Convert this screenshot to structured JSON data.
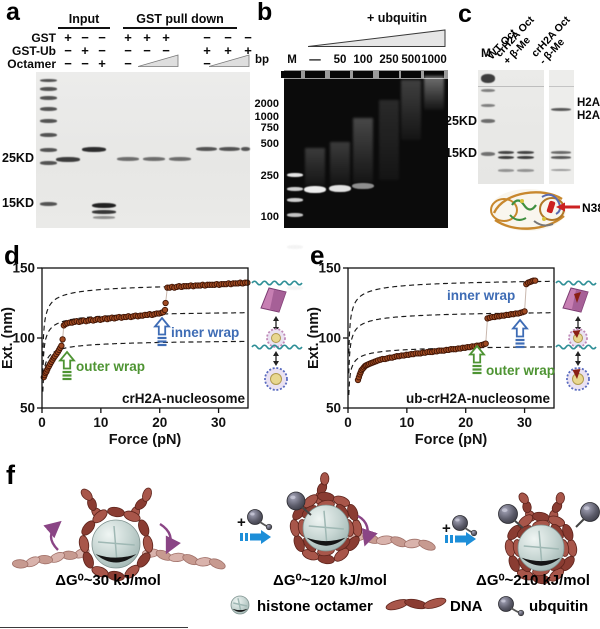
{
  "panels": {
    "a": {
      "label": "a",
      "group1": "Input",
      "group2": "GST pull down",
      "row1_name": "GST",
      "row1": [
        "+",
        "−",
        "−",
        "+",
        "+",
        "+",
        "−",
        "−",
        "−"
      ],
      "row2_name": "GST-Ub",
      "row2": [
        "−",
        "+",
        "−",
        "−",
        "−",
        "−",
        "+",
        "+",
        "+"
      ],
      "row3_name": "Octamer",
      "row3": [
        "−",
        "−",
        "+",
        "−",
        "−"
      ],
      "mw1": "25KD",
      "mw2": "15KD"
    },
    "b": {
      "label": "b",
      "title": "+ ubquitin",
      "bp": "bp",
      "m": "M",
      "lanes": [
        "—",
        "50",
        "100",
        "250",
        "500",
        "1000"
      ],
      "ladder": [
        "2000",
        "1000",
        "750",
        "500",
        "250",
        "100"
      ]
    },
    "c": {
      "label": "c",
      "m": "M",
      "lane1": "WT Oct",
      "lane2a": "crH2A Oct",
      "lane2b": "+ β-Me",
      "lane3a": "crH2A Oct",
      "lane3b": "- β-Me",
      "mw1": "25KD",
      "mw2": "15KD",
      "band1": "H2A-",
      "band2": "H2A",
      "structure_label": "N38C"
    },
    "d": {
      "label": "d"
    },
    "e": {
      "label": "e"
    },
    "f": {
      "label": "f",
      "dg": [
        "ΔG⁰~30 kJ/mol",
        "ΔG⁰~120 kJ/mol",
        "ΔG⁰~210 kJ/mol"
      ],
      "legend": [
        "histone octamer",
        "DNA",
        "ubquitin"
      ]
    }
  },
  "chart_data": [
    {
      "type": "scatter",
      "panel": "d",
      "title": "crH2A-nucleosome",
      "xlabel": "Force (pN)",
      "ylabel": "Ext. (nm)",
      "xlim": [
        0,
        35
      ],
      "ylim": [
        50,
        150
      ],
      "xticks": [
        0,
        10,
        20,
        30
      ],
      "yticks": [
        50,
        100,
        150
      ],
      "point_color": "#a04a22",
      "model_L": [
        100,
        121,
        141
      ],
      "annotations": [
        {
          "label": "outer wrap",
          "color": "#4e9433"
        },
        {
          "label": "inner wrap",
          "color": "#3e6cb5"
        }
      ],
      "transitions": [
        {
          "name": "outer wrap",
          "force_pN": 3.6,
          "ext_jump_nm": [
            95,
            109
          ]
        },
        {
          "name": "inner wrap",
          "force_pN": 21.1,
          "ext_jump_nm": [
            120,
            136
          ]
        }
      ],
      "points": [
        [
          0.3,
          72
        ],
        [
          0.45,
          73.5
        ],
        [
          0.6,
          75
        ],
        [
          0.75,
          76
        ],
        [
          0.9,
          77.5
        ],
        [
          1.05,
          79
        ],
        [
          1.2,
          80
        ],
        [
          1.4,
          81.5
        ],
        [
          1.6,
          83
        ],
        [
          1.8,
          84.5
        ],
        [
          2.0,
          86
        ],
        [
          2.2,
          87
        ],
        [
          2.45,
          88.5
        ],
        [
          2.7,
          90
        ],
        [
          2.9,
          91.5
        ],
        [
          3.1,
          93
        ],
        [
          3.3,
          94.5
        ],
        [
          3.5,
          99
        ],
        [
          3.7,
          109
        ],
        [
          4.0,
          110
        ],
        [
          4.3,
          110.5
        ],
        [
          4.7,
          111
        ],
        [
          5.1,
          111
        ],
        [
          5.5,
          111.5
        ],
        [
          5.9,
          112
        ],
        [
          6.3,
          111.5
        ],
        [
          6.7,
          112
        ],
        [
          7.1,
          112.5
        ],
        [
          7.5,
          112
        ],
        [
          7.9,
          112.5
        ],
        [
          8.3,
          113
        ],
        [
          8.7,
          112.5
        ],
        [
          9.1,
          113
        ],
        [
          9.5,
          113.5
        ],
        [
          9.9,
          113
        ],
        [
          10.3,
          113.5
        ],
        [
          10.7,
          114
        ],
        [
          11.1,
          113.5
        ],
        [
          11.5,
          114
        ],
        [
          11.9,
          114.5
        ],
        [
          12.3,
          114
        ],
        [
          12.7,
          114.5
        ],
        [
          13.1,
          115
        ],
        [
          13.5,
          114.5
        ],
        [
          13.9,
          115
        ],
        [
          14.3,
          115
        ],
        [
          14.7,
          115.5
        ],
        [
          15.1,
          115
        ],
        [
          15.5,
          115.5
        ],
        [
          15.9,
          116
        ],
        [
          16.3,
          115.5
        ],
        [
          16.7,
          116
        ],
        [
          17.1,
          116
        ],
        [
          17.5,
          116.5
        ],
        [
          17.9,
          116.5
        ],
        [
          18.3,
          117
        ],
        [
          18.7,
          116.5
        ],
        [
          19.1,
          117
        ],
        [
          19.5,
          117.5
        ],
        [
          19.9,
          117.5
        ],
        [
          20.3,
          118
        ],
        [
          20.6,
          118.5
        ],
        [
          20.9,
          120
        ],
        [
          21.0,
          125
        ],
        [
          21.3,
          136
        ],
        [
          21.7,
          136
        ],
        [
          22.1,
          136.5
        ],
        [
          22.5,
          136
        ],
        [
          22.9,
          136.5
        ],
        [
          23.3,
          137
        ],
        [
          23.7,
          136.5
        ],
        [
          24.1,
          137
        ],
        [
          24.5,
          137
        ],
        [
          24.9,
          137
        ],
        [
          25.3,
          137.5
        ],
        [
          25.7,
          137
        ],
        [
          26.1,
          137.5
        ],
        [
          26.5,
          137.5
        ],
        [
          26.9,
          137.5
        ],
        [
          27.3,
          138
        ],
        [
          27.7,
          137.5
        ],
        [
          28.1,
          138
        ],
        [
          28.5,
          138
        ],
        [
          28.9,
          138
        ],
        [
          29.3,
          138
        ],
        [
          29.7,
          138.5
        ],
        [
          30.1,
          138
        ],
        [
          30.5,
          138.5
        ],
        [
          30.9,
          138.5
        ],
        [
          31.3,
          138.5
        ],
        [
          31.7,
          139
        ],
        [
          32.1,
          138.5
        ],
        [
          32.5,
          139
        ],
        [
          32.9,
          139
        ],
        [
          33.3,
          139
        ],
        [
          33.7,
          139.5
        ],
        [
          34.1,
          139
        ],
        [
          34.5,
          139.5
        ],
        [
          34.9,
          139.5
        ]
      ]
    },
    {
      "type": "scatter",
      "panel": "e",
      "title": "ub-crH2A-nucleosome",
      "xlabel": "Force (pN)",
      "ylabel": "Ext. (nm)",
      "xlim": [
        0,
        35
      ],
      "ylim": [
        50,
        150
      ],
      "xticks": [
        0,
        10,
        20,
        30
      ],
      "yticks": [
        50,
        100,
        150
      ],
      "point_color": "#a04a22",
      "model_L": [
        96,
        121,
        144
      ],
      "annotations": [
        {
          "label": "outer wrap",
          "color": "#4e9433"
        },
        {
          "label": "inner wrap",
          "color": "#3e6cb5"
        }
      ],
      "transitions": [
        {
          "name": "outer wrap",
          "force_pN": 23.5,
          "ext_jump_nm": [
            96,
            114
          ]
        },
        {
          "name": "inner wrap",
          "force_pN": 30.1,
          "ext_jump_nm": [
            119,
            138
          ]
        }
      ],
      "points": [
        [
          1.7,
          70
        ],
        [
          1.85,
          72
        ],
        [
          2.0,
          74
        ],
        [
          2.15,
          75.5
        ],
        [
          2.3,
          77
        ],
        [
          2.5,
          78
        ],
        [
          2.7,
          79
        ],
        [
          2.9,
          80
        ],
        [
          3.1,
          80.5
        ],
        [
          3.35,
          81
        ],
        [
          3.6,
          81.5
        ],
        [
          3.9,
          82
        ],
        [
          4.2,
          82.5
        ],
        [
          4.5,
          83
        ],
        [
          4.8,
          83.5
        ],
        [
          5.1,
          84
        ],
        [
          5.5,
          84.5
        ],
        [
          5.9,
          85
        ],
        [
          6.3,
          85
        ],
        [
          6.7,
          85.5
        ],
        [
          7.1,
          86
        ],
        [
          7.5,
          86
        ],
        [
          7.9,
          86.5
        ],
        [
          8.3,
          87
        ],
        [
          8.7,
          87
        ],
        [
          9.1,
          87.5
        ],
        [
          9.5,
          87.5
        ],
        [
          9.9,
          88
        ],
        [
          10.3,
          88
        ],
        [
          10.7,
          88.5
        ],
        [
          11.1,
          88.5
        ],
        [
          11.5,
          89
        ],
        [
          11.9,
          89
        ],
        [
          12.3,
          89
        ],
        [
          12.7,
          89.5
        ],
        [
          13.1,
          89.5
        ],
        [
          13.5,
          90
        ],
        [
          13.9,
          90
        ],
        [
          14.3,
          90
        ],
        [
          14.7,
          90.5
        ],
        [
          15.1,
          90.5
        ],
        [
          15.5,
          91
        ],
        [
          15.9,
          91
        ],
        [
          16.3,
          91
        ],
        [
          16.7,
          91.5
        ],
        [
          17.1,
          91.5
        ],
        [
          17.5,
          92
        ],
        [
          17.9,
          92
        ],
        [
          18.3,
          92
        ],
        [
          18.7,
          92.5
        ],
        [
          19.1,
          92.5
        ],
        [
          19.5,
          93
        ],
        [
          19.9,
          93
        ],
        [
          20.3,
          93.5
        ],
        [
          20.7,
          93.5
        ],
        [
          21.1,
          94
        ],
        [
          21.5,
          94
        ],
        [
          21.9,
          94.5
        ],
        [
          22.3,
          94.5
        ],
        [
          22.7,
          95
        ],
        [
          23.1,
          95.5
        ],
        [
          23.4,
          96
        ],
        [
          23.7,
          114
        ],
        [
          24.1,
          114.5
        ],
        [
          24.5,
          115
        ],
        [
          24.9,
          115
        ],
        [
          25.3,
          115.5
        ],
        [
          25.7,
          115.5
        ],
        [
          26.1,
          116
        ],
        [
          26.5,
          116
        ],
        [
          26.9,
          116.5
        ],
        [
          27.3,
          116.5
        ],
        [
          27.7,
          117
        ],
        [
          28.1,
          117
        ],
        [
          28.5,
          117.5
        ],
        [
          28.9,
          117.5
        ],
        [
          29.3,
          118
        ],
        [
          29.7,
          118.5
        ],
        [
          30.0,
          119
        ],
        [
          30.3,
          138.5
        ],
        [
          30.6,
          139.5
        ],
        [
          30.9,
          140
        ],
        [
          31.2,
          140.5
        ],
        [
          31.5,
          141
        ],
        [
          31.8,
          141
        ]
      ]
    }
  ]
}
